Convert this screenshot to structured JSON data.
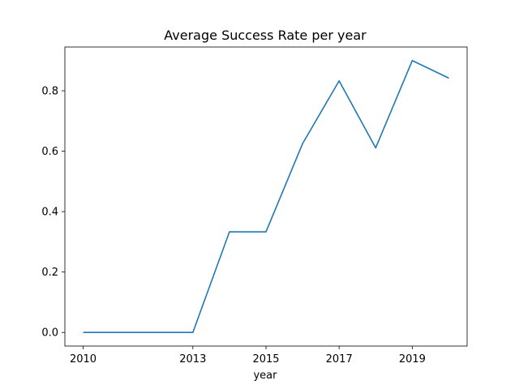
{
  "chart_data": {
    "type": "line",
    "title": "Average Success Rate per year",
    "xlabel": "year",
    "ylabel": "",
    "x": [
      2010,
      2013,
      2014,
      2015,
      2016,
      2017,
      2018,
      2019,
      2020
    ],
    "xticks": [
      2010,
      2013,
      2015,
      2017,
      2019
    ],
    "yticks": [
      "0.0",
      "0.2",
      "0.4",
      "0.6",
      "0.8"
    ],
    "xlim": [
      2009.5,
      2020.5
    ],
    "ylim": [
      -0.045,
      0.945
    ],
    "grid": false,
    "series": [
      {
        "values": [
          0.0,
          0.0,
          0.333,
          0.333,
          0.625,
          0.833,
          0.611,
          0.9,
          0.842
        ],
        "color": "#1f77b4"
      }
    ]
  }
}
